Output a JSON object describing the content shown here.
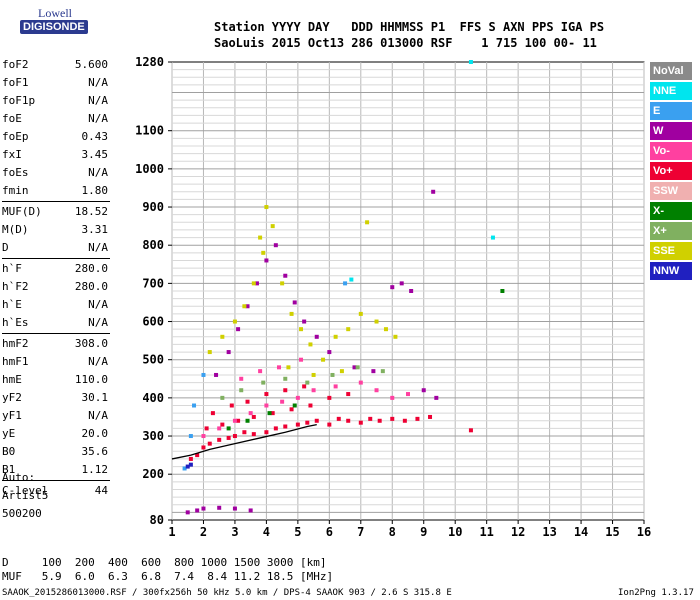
{
  "logo": {
    "brand": "Lowell",
    "name": "DIGISONDE"
  },
  "header": {
    "line1": "Station YYYY DAY   DDD HHMMSS P1  FFS S AXN PPS IGA PS",
    "line2": "SaoLuis 2015 Oct13 286 013000 RSF    1 715 100 00- 11"
  },
  "params": [
    {
      "label": "foF2",
      "value": "5.600"
    },
    {
      "label": "foF1",
      "value": "N/A"
    },
    {
      "label": "foF1p",
      "value": "N/A"
    },
    {
      "label": "foE",
      "value": "N/A"
    },
    {
      "label": "foEp",
      "value": "0.43"
    },
    {
      "label": "fxI",
      "value": "3.45"
    },
    {
      "label": "foEs",
      "value": "N/A"
    },
    {
      "label": "fmin",
      "value": "1.80"
    },
    {
      "label": "MUF(D)",
      "value": "18.52"
    },
    {
      "label": "M(D)",
      "value": "3.31"
    },
    {
      "label": "D",
      "value": "N/A"
    },
    {
      "label": "h`F",
      "value": "280.0"
    },
    {
      "label": "h`F2",
      "value": "280.0"
    },
    {
      "label": "h`E",
      "value": "N/A"
    },
    {
      "label": "h`Es",
      "value": "N/A"
    },
    {
      "label": "hmF2",
      "value": "308.0"
    },
    {
      "label": "hmF1",
      "value": "N/A"
    },
    {
      "label": "hmE",
      "value": "110.0"
    },
    {
      "label": "yF2",
      "value": "30.1"
    },
    {
      "label": "yF1",
      "value": "N/A"
    },
    {
      "label": "yE",
      "value": "20.0"
    },
    {
      "label": "B0",
      "value": "35.6"
    },
    {
      "label": "B1",
      "value": "1.12"
    },
    {
      "label": "C-level",
      "value": "44"
    }
  ],
  "auto": {
    "line1": "Auto:",
    "line2": "Artist5",
    "line3": "500200"
  },
  "legend": [
    {
      "label": "NoVal",
      "color": "#8a8a8a",
      "text_color": "#ffffff"
    },
    {
      "label": "NNE",
      "color": "#00e5ee",
      "text_color": "#ffffff"
    },
    {
      "label": "E",
      "color": "#3aa0f0",
      "text_color": "#ffffff"
    },
    {
      "label": "W",
      "color": "#a000a0",
      "text_color": "#ffffff"
    },
    {
      "label": "Vo-",
      "color": "#ff40a0",
      "text_color": "#ffffff"
    },
    {
      "label": "Vo+",
      "color": "#ee0033",
      "text_color": "#ffffff"
    },
    {
      "label": "SSW",
      "color": "#f0b0b0",
      "text_color": "#ffffff"
    },
    {
      "label": "X-",
      "color": "#008000",
      "text_color": "#ffffff"
    },
    {
      "label": "X+",
      "color": "#80b060",
      "text_color": "#ffffff"
    },
    {
      "label": "SSE",
      "color": "#d0d000",
      "text_color": "#ffffff"
    },
    {
      "label": "NNW",
      "color": "#2020c0",
      "text_color": "#ffffff"
    }
  ],
  "muf_table": {
    "d_line": "D     100  200  400  600  800 1000 1500 3000 [km]",
    "muf_line": "MUF   5.9  6.0  6.3  6.8  7.4  8.4 11.2 18.5 [MHz]"
  },
  "footer": {
    "left": "SAAOK_2015286013000.RSF / 300fx256h 50 kHz 5.0 km / DPS-4 SAAOK 903 / 2.6 S 315.8 E",
    "right": "Ion2Png 1.3.17"
  },
  "chart_data": {
    "type": "scatter",
    "title": "",
    "xlabel": "",
    "ylabel": "",
    "xlim": [
      1,
      16
    ],
    "ylim": [
      80,
      1280
    ],
    "x_ticks": [
      1,
      2,
      3,
      4,
      5,
      6,
      7,
      8,
      9,
      10,
      11,
      12,
      13,
      14,
      15,
      16
    ],
    "y_ticks": [
      80,
      200,
      300,
      400,
      500,
      600,
      700,
      800,
      900,
      1000,
      1100,
      1280
    ],
    "grid": true,
    "series": [
      {
        "name": "Vo+",
        "color": "#ee0033",
        "points": [
          [
            1.6,
            240
          ],
          [
            1.8,
            250
          ],
          [
            2.0,
            270
          ],
          [
            2.2,
            280
          ],
          [
            2.5,
            290
          ],
          [
            2.8,
            295
          ],
          [
            3.0,
            300
          ],
          [
            3.3,
            310
          ],
          [
            3.6,
            305
          ],
          [
            4.0,
            310
          ],
          [
            4.3,
            320
          ],
          [
            4.6,
            325
          ],
          [
            5.0,
            330
          ],
          [
            5.3,
            335
          ],
          [
            5.6,
            340
          ],
          [
            6.0,
            330
          ],
          [
            6.3,
            345
          ],
          [
            6.6,
            340
          ],
          [
            7.0,
            335
          ],
          [
            7.3,
            345
          ],
          [
            7.6,
            340
          ],
          [
            8.0,
            345
          ],
          [
            8.4,
            340
          ],
          [
            8.8,
            345
          ],
          [
            9.2,
            350
          ],
          [
            2.1,
            320
          ],
          [
            2.6,
            330
          ],
          [
            3.1,
            340
          ],
          [
            3.6,
            350
          ],
          [
            4.2,
            360
          ],
          [
            4.8,
            370
          ],
          [
            5.4,
            380
          ],
          [
            6.0,
            400
          ],
          [
            6.6,
            410
          ],
          [
            2.3,
            360
          ],
          [
            2.9,
            380
          ],
          [
            3.4,
            390
          ],
          [
            4.0,
            410
          ],
          [
            4.6,
            420
          ],
          [
            5.2,
            430
          ],
          [
            10.5,
            315
          ]
        ]
      },
      {
        "name": "Vo-",
        "color": "#ff40a0",
        "points": [
          [
            2.0,
            300
          ],
          [
            2.5,
            320
          ],
          [
            3.0,
            340
          ],
          [
            3.5,
            360
          ],
          [
            4.0,
            380
          ],
          [
            4.5,
            390
          ],
          [
            5.0,
            400
          ],
          [
            5.5,
            420
          ],
          [
            6.2,
            430
          ],
          [
            7.0,
            440
          ],
          [
            7.5,
            420
          ],
          [
            8.0,
            400
          ],
          [
            8.5,
            410
          ],
          [
            3.2,
            450
          ],
          [
            3.8,
            470
          ],
          [
            4.4,
            480
          ],
          [
            5.1,
            500
          ]
        ]
      },
      {
        "name": "W",
        "color": "#a000a0",
        "points": [
          [
            1.5,
            100
          ],
          [
            1.8,
            105
          ],
          [
            2.0,
            110
          ],
          [
            2.5,
            112
          ],
          [
            3.0,
            110
          ],
          [
            3.5,
            105
          ],
          [
            2.4,
            460
          ],
          [
            2.8,
            520
          ],
          [
            3.1,
            580
          ],
          [
            3.4,
            640
          ],
          [
            3.7,
            700
          ],
          [
            4.0,
            760
          ],
          [
            4.3,
            800
          ],
          [
            4.6,
            720
          ],
          [
            4.9,
            650
          ],
          [
            5.2,
            600
          ],
          [
            5.6,
            560
          ],
          [
            6.0,
            520
          ],
          [
            6.8,
            480
          ],
          [
            7.4,
            470
          ],
          [
            8.0,
            690
          ],
          [
            8.3,
            700
          ],
          [
            8.6,
            680
          ],
          [
            9.0,
            420
          ],
          [
            9.4,
            400
          ],
          [
            9.3,
            940
          ]
        ]
      },
      {
        "name": "SSE",
        "color": "#d0d000",
        "points": [
          [
            2.2,
            520
          ],
          [
            2.6,
            560
          ],
          [
            3.0,
            600
          ],
          [
            3.3,
            640
          ],
          [
            3.6,
            700
          ],
          [
            3.9,
            780
          ],
          [
            4.2,
            850
          ],
          [
            4.0,
            900
          ],
          [
            3.8,
            820
          ],
          [
            4.5,
            700
          ],
          [
            4.8,
            620
          ],
          [
            5.1,
            580
          ],
          [
            5.4,
            540
          ],
          [
            5.8,
            500
          ],
          [
            6.2,
            560
          ],
          [
            6.6,
            580
          ],
          [
            7.0,
            620
          ],
          [
            7.2,
            860
          ],
          [
            7.5,
            600
          ],
          [
            7.8,
            580
          ],
          [
            8.1,
            560
          ],
          [
            4.7,
            480
          ],
          [
            5.5,
            460
          ],
          [
            6.4,
            470
          ]
        ]
      },
      {
        "name": "X+",
        "color": "#80b060",
        "points": [
          [
            2.6,
            400
          ],
          [
            3.2,
            420
          ],
          [
            3.9,
            440
          ],
          [
            4.6,
            450
          ],
          [
            5.3,
            440
          ],
          [
            6.1,
            460
          ],
          [
            6.9,
            480
          ],
          [
            7.7,
            470
          ]
        ]
      },
      {
        "name": "X-",
        "color": "#008000",
        "points": [
          [
            2.8,
            320
          ],
          [
            3.4,
            340
          ],
          [
            4.1,
            360
          ],
          [
            4.9,
            380
          ],
          [
            11.5,
            680
          ]
        ]
      },
      {
        "name": "E",
        "color": "#3aa0f0",
        "points": [
          [
            1.4,
            215
          ],
          [
            1.6,
            300
          ],
          [
            1.7,
            380
          ],
          [
            2.0,
            460
          ],
          [
            6.5,
            700
          ]
        ]
      },
      {
        "name": "NNE",
        "color": "#00e5ee",
        "points": [
          [
            10.5,
            1280
          ],
          [
            11.2,
            820
          ],
          [
            6.7,
            710
          ]
        ]
      },
      {
        "name": "NNW",
        "color": "#2020c0",
        "points": [
          [
            1.5,
            220
          ],
          [
            1.6,
            225
          ]
        ]
      }
    ],
    "trace": {
      "name": "fitted trace",
      "color": "#000000",
      "points": [
        [
          1.0,
          240
        ],
        [
          1.6,
          250
        ],
        [
          2.2,
          265
        ],
        [
          3.0,
          280
        ],
        [
          3.8,
          295
        ],
        [
          4.6,
          310
        ],
        [
          5.3,
          325
        ],
        [
          5.6,
          330
        ]
      ]
    }
  }
}
